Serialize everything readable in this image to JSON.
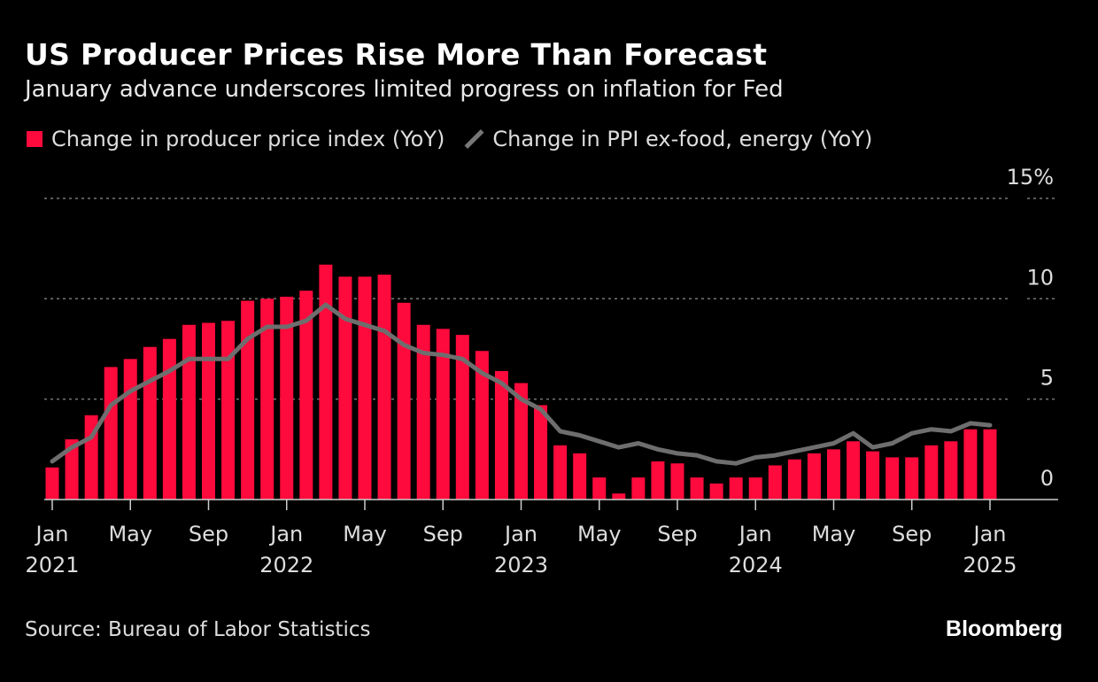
{
  "title": "US Producer Prices Rise More Than Forecast",
  "subtitle": "January advance underscores limited progress on inflation for Fed",
  "source": "Source: Bureau of Labor Statistics",
  "logo": "Bloomberg",
  "chart_data": {
    "type": "bar+line",
    "colors": {
      "bar": "#ff0a3c",
      "line": "#6e6e6e",
      "background": "#000000"
    },
    "ylim": [
      0,
      15
    ],
    "yticks": [
      {
        "v": 15,
        "label": "15%"
      },
      {
        "v": 10,
        "label": "10"
      },
      {
        "v": 5,
        "label": "5"
      },
      {
        "v": 0,
        "label": "0"
      }
    ],
    "grid": true,
    "legend_placement": "top-left",
    "xticks": [
      {
        "i": 0,
        "label": "Jan",
        "year": "2021"
      },
      {
        "i": 4,
        "label": "May",
        "year": ""
      },
      {
        "i": 8,
        "label": "Sep",
        "year": ""
      },
      {
        "i": 12,
        "label": "Jan",
        "year": "2022"
      },
      {
        "i": 16,
        "label": "May",
        "year": ""
      },
      {
        "i": 20,
        "label": "Sep",
        "year": ""
      },
      {
        "i": 24,
        "label": "Jan",
        "year": "2023"
      },
      {
        "i": 28,
        "label": "May",
        "year": ""
      },
      {
        "i": 32,
        "label": "Sep",
        "year": ""
      },
      {
        "i": 36,
        "label": "Jan",
        "year": "2024"
      },
      {
        "i": 40,
        "label": "May",
        "year": ""
      },
      {
        "i": 44,
        "label": "Sep",
        "year": ""
      },
      {
        "i": 48,
        "label": "Jan",
        "year": "2025"
      }
    ],
    "x_start": "2021-01",
    "x_end": "2025-01",
    "series": [
      {
        "name": "Change in producer price index (YoY)",
        "type": "bar",
        "values": [
          1.6,
          3.0,
          4.2,
          6.6,
          7.0,
          7.6,
          8.0,
          8.7,
          8.8,
          8.9,
          9.9,
          10.0,
          10.1,
          10.4,
          11.7,
          11.1,
          11.1,
          11.2,
          9.8,
          8.7,
          8.5,
          8.2,
          7.4,
          6.4,
          5.8,
          4.7,
          2.7,
          2.3,
          1.1,
          0.3,
          1.1,
          1.9,
          1.8,
          1.1,
          0.8,
          1.1,
          1.1,
          1.7,
          2.0,
          2.3,
          2.5,
          2.9,
          2.4,
          2.1,
          2.1,
          2.7,
          2.9,
          3.5,
          3.5
        ]
      },
      {
        "name": "Change in PPI ex-food, energy (YoY)",
        "type": "line",
        "values": [
          1.9,
          2.6,
          3.1,
          4.7,
          5.4,
          5.9,
          6.4,
          7.0,
          7.0,
          7.0,
          8.0,
          8.6,
          8.6,
          8.9,
          9.7,
          9.0,
          8.7,
          8.4,
          7.7,
          7.3,
          7.2,
          7.0,
          6.3,
          5.8,
          5.0,
          4.5,
          3.4,
          3.2,
          2.9,
          2.6,
          2.8,
          2.5,
          2.3,
          2.2,
          1.9,
          1.8,
          2.1,
          2.2,
          2.4,
          2.6,
          2.8,
          3.3,
          2.6,
          2.8,
          3.3,
          3.5,
          3.4,
          3.8,
          3.7
        ]
      }
    ]
  }
}
